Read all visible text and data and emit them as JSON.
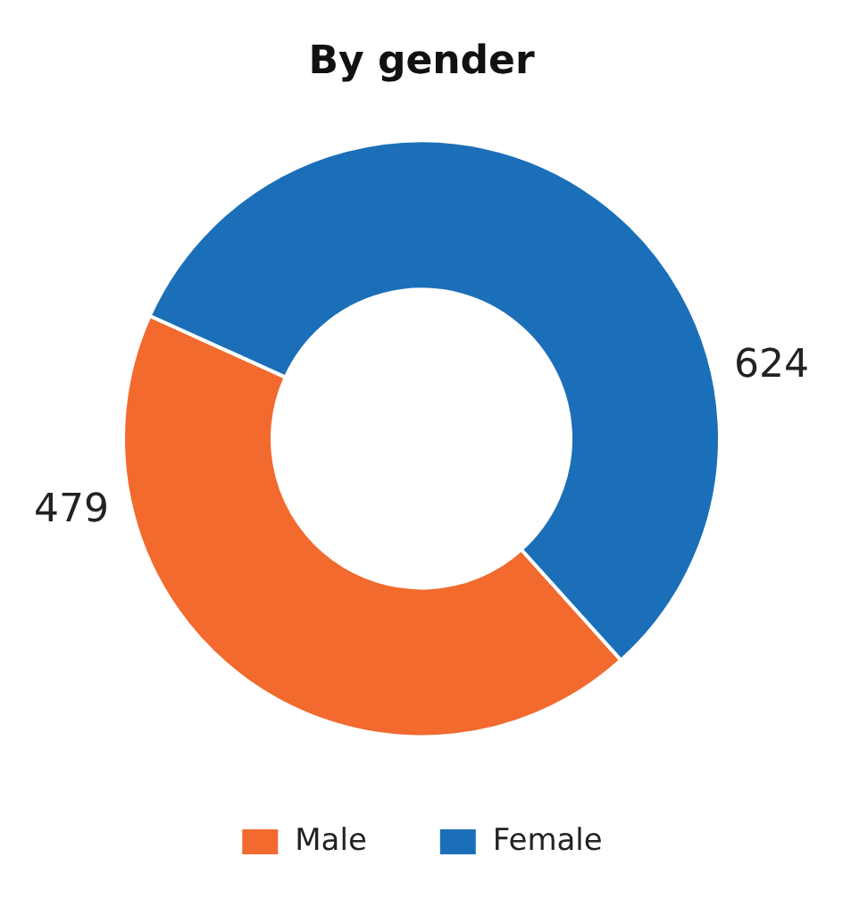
{
  "chart_data": {
    "type": "donut",
    "title": "By gender",
    "categories": [
      "Male",
      "Female"
    ],
    "values": [
      479,
      624
    ],
    "colors": [
      "#f26a2e",
      "#1b6fb8"
    ],
    "data_labels": true,
    "legend": "bottom"
  }
}
